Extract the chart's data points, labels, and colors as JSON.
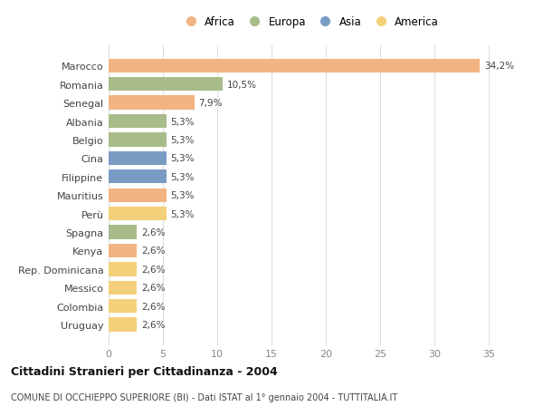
{
  "categories": [
    "Marocco",
    "Romania",
    "Senegal",
    "Albania",
    "Belgio",
    "Cina",
    "Filippine",
    "Mauritius",
    "Perù",
    "Spagna",
    "Kenya",
    "Rep. Dominicana",
    "Messico",
    "Colombia",
    "Uruguay"
  ],
  "values": [
    34.2,
    10.5,
    7.9,
    5.3,
    5.3,
    5.3,
    5.3,
    5.3,
    5.3,
    2.6,
    2.6,
    2.6,
    2.6,
    2.6,
    2.6
  ],
  "labels": [
    "34,2%",
    "10,5%",
    "7,9%",
    "5,3%",
    "5,3%",
    "5,3%",
    "5,3%",
    "5,3%",
    "5,3%",
    "2,6%",
    "2,6%",
    "2,6%",
    "2,6%",
    "2,6%",
    "2,6%"
  ],
  "colors": [
    "#f2b482",
    "#a8bc8a",
    "#f2b482",
    "#a8bc8a",
    "#a8bc8a",
    "#7a9cc4",
    "#7a9cc4",
    "#f2b482",
    "#f5d07a",
    "#a8bc8a",
    "#f2b482",
    "#f5d07a",
    "#f5d07a",
    "#f5d07a",
    "#f5d07a"
  ],
  "legend_labels": [
    "Africa",
    "Europa",
    "Asia",
    "America"
  ],
  "legend_colors": [
    "#f2b482",
    "#a8bc8a",
    "#7a9cc4",
    "#f5d07a"
  ],
  "title": "Cittadini Stranieri per Cittadinanza - 2004",
  "subtitle": "COMUNE DI OCCHIEPPO SUPERIORE (BI) - Dati ISTAT al 1° gennaio 2004 - TUTTITALIA.IT",
  "xlim": [
    0,
    37
  ],
  "xticks": [
    0,
    5,
    10,
    15,
    20,
    25,
    30,
    35
  ],
  "bg_color": "#ffffff",
  "grid_color": "#dddddd",
  "bar_height": 0.75
}
